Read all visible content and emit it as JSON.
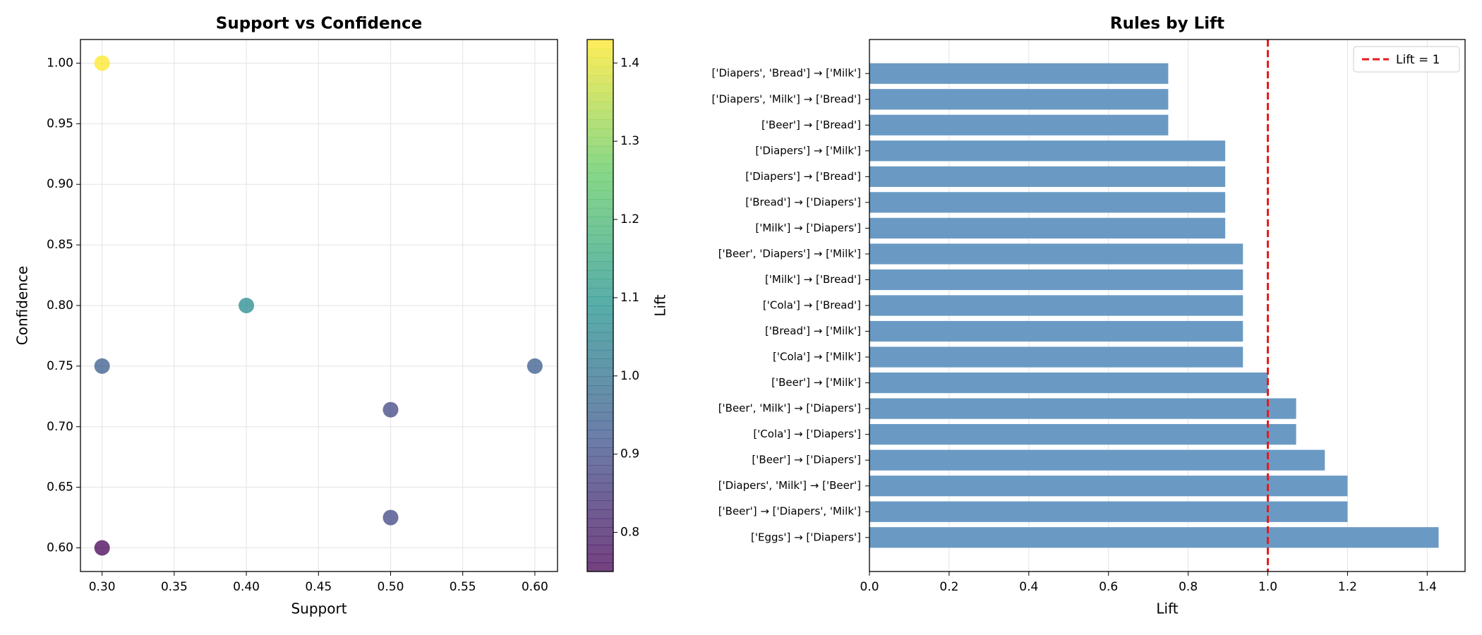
{
  "chart_data": [
    {
      "type": "scatter",
      "title": "Support vs Confidence",
      "xlabel": "Support",
      "ylabel": "Confidence",
      "x": [
        0.3,
        0.4,
        0.3,
        0.6,
        0.5,
        0.5,
        0.3
      ],
      "values": [
        1.0,
        0.8,
        0.75,
        0.75,
        0.714,
        0.625,
        0.6
      ],
      "color_values": [
        1.43,
        1.07,
        0.94,
        0.94,
        0.89,
        0.89,
        0.75
      ],
      "colormap": "viridis",
      "alpha": 0.75,
      "colorbar": {
        "label": "Lift",
        "lim": [
          0.75,
          1.43
        ],
        "ticks": [
          0.8,
          0.9,
          {
            "value": 1.0,
            "label": "1.0"
          },
          1.1,
          1.2,
          1.3,
          1.4
        ]
      },
      "xlim": [
        0.285,
        0.6157
      ],
      "xticks": [
        {
          "value": 0.3,
          "label": "0.30"
        },
        {
          "value": 0.35,
          "label": "0.35"
        },
        {
          "value": 0.4,
          "label": "0.40"
        },
        {
          "value": 0.45,
          "label": "0.45"
        },
        {
          "value": 0.5,
          "label": "0.50"
        },
        {
          "value": 0.55,
          "label": "0.55"
        },
        {
          "value": 0.6,
          "label": "0.60"
        }
      ],
      "ylim": [
        0.5805,
        1.0195
      ],
      "yticks": [
        {
          "value": 0.6,
          "label": "0.60"
        },
        {
          "value": 0.65,
          "label": "0.65"
        },
        {
          "value": 0.7,
          "label": "0.70"
        },
        {
          "value": 0.75,
          "label": "0.75"
        },
        {
          "value": 0.8,
          "label": "0.80"
        },
        {
          "value": 0.85,
          "label": "0.85"
        },
        {
          "value": 0.9,
          "label": "0.90"
        },
        {
          "value": 0.95,
          "label": "0.95"
        },
        {
          "value": 1.0,
          "label": "1.00"
        }
      ],
      "grid": true
    },
    {
      "type": "barh",
      "title": "Rules by Lift",
      "xlabel": "Lift",
      "color": "#6a9ac4",
      "categories": [
        "['Diapers', 'Bread'] → ['Milk']",
        "['Diapers', 'Milk'] → ['Bread']",
        "['Beer'] → ['Bread']",
        "['Diapers'] → ['Milk']",
        "['Diapers'] → ['Bread']",
        "['Bread'] → ['Diapers']",
        "['Milk'] → ['Diapers']",
        "['Beer', 'Diapers'] → ['Milk']",
        "['Milk'] → ['Bread']",
        "['Cola'] → ['Bread']",
        "['Bread'] → ['Milk']",
        "['Cola'] → ['Milk']",
        "['Beer'] → ['Milk']",
        "['Beer', 'Milk'] → ['Diapers']",
        "['Cola'] → ['Diapers']",
        "['Beer'] → ['Diapers']",
        "['Diapers', 'Milk'] → ['Beer']",
        "['Beer'] → ['Diapers', 'Milk']",
        "['Eggs'] → ['Diapers']"
      ],
      "values": [
        0.75,
        0.75,
        0.75,
        0.893,
        0.893,
        0.893,
        0.893,
        0.9375,
        0.9375,
        0.9375,
        0.9375,
        0.9375,
        1.0,
        1.071,
        1.071,
        1.143,
        1.2,
        1.2,
        1.4286
      ],
      "xlim": [
        0,
        1.495
      ],
      "xticks": [
        {
          "value": 0,
          "label": "0.0"
        },
        0.2,
        0.4,
        0.6,
        0.8,
        {
          "value": 1.0,
          "label": "1.0"
        },
        1.2,
        1.4
      ],
      "reference_line": {
        "value": 1,
        "label": "Lift = 1",
        "color": "#e41a1c"
      },
      "legend": "upper right",
      "grid": true
    }
  ]
}
